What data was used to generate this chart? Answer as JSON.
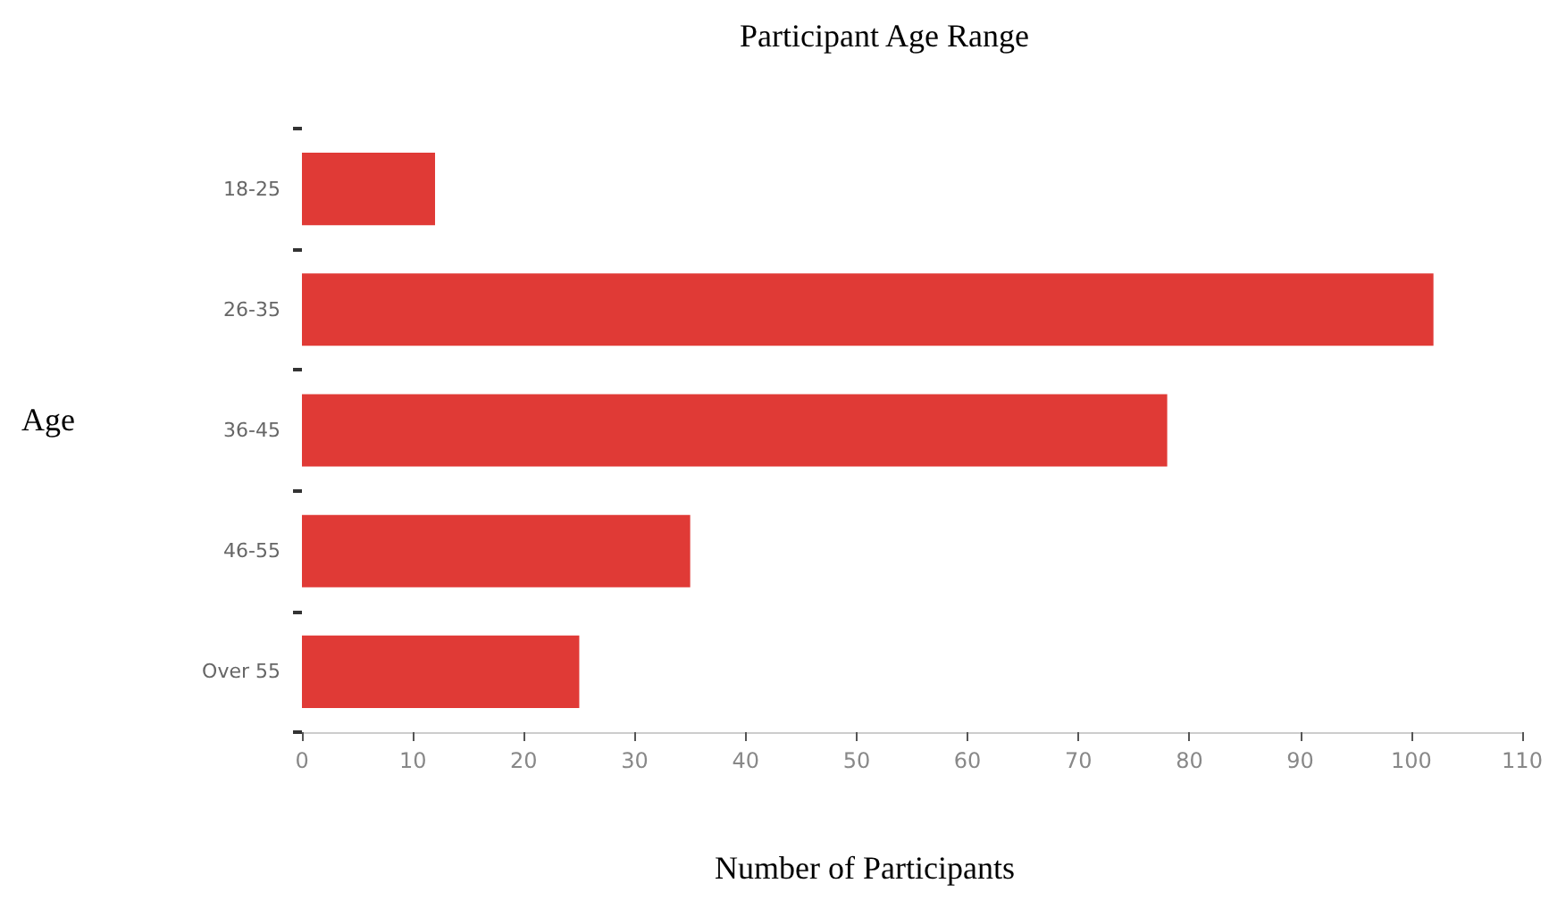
{
  "chart_data": {
    "type": "bar",
    "orientation": "horizontal",
    "title": "Participant Age Range",
    "xlabel": "Number of Participants",
    "ylabel": "Age",
    "categories": [
      "18-25",
      "26-35",
      "36-45",
      "46-55",
      "Over 55"
    ],
    "values": [
      12,
      102,
      78,
      35,
      25
    ],
    "color": "#e03a36",
    "xlim": [
      0,
      110
    ],
    "xticks": [
      0,
      10,
      20,
      30,
      40,
      50,
      60,
      70,
      80,
      90,
      100,
      110
    ],
    "grid": false
  }
}
